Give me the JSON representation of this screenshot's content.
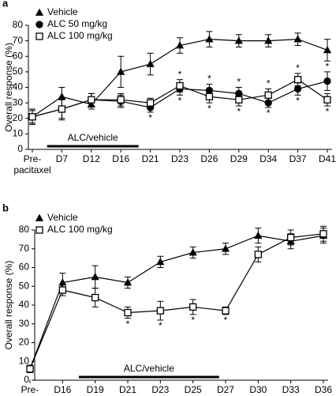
{
  "chart_data": [
    {
      "type": "line",
      "panel": "a",
      "y_label": "Overall response (%)",
      "categories": [
        "Pre-\npacitaxel",
        "D7",
        "D12",
        "D16",
        "D21",
        "D23",
        "D26",
        "D29",
        "D34",
        "D37",
        "D41"
      ],
      "ylim": [
        0,
        80
      ],
      "yticks": [
        0,
        10,
        20,
        30,
        40,
        50,
        60,
        70,
        80
      ],
      "legend": "top-left",
      "annotation": "ALC/vehicle",
      "series": [
        {
          "name": "Vehicle",
          "color": "#000000",
          "marker": "triangle",
          "values": [
            21,
            34,
            29,
            50,
            55,
            67,
            71,
            70,
            70,
            71,
            64
          ],
          "errors": [
            5,
            6,
            3,
            10,
            7,
            5,
            5,
            4,
            4,
            4,
            7
          ],
          "significance": [
            null,
            null,
            null,
            null,
            null,
            null,
            null,
            null,
            null,
            null,
            null
          ]
        },
        {
          "name": "ALC 50 mg/kg",
          "color": "#000000",
          "marker": "circle",
          "values": [
            21,
            26,
            32,
            31,
            27,
            39,
            38,
            36,
            30,
            39,
            44
          ],
          "errors": [
            4,
            7,
            4,
            4,
            3,
            4,
            4,
            4,
            3,
            4,
            6
          ],
          "significance": [
            null,
            null,
            null,
            null,
            "*",
            "*",
            "*",
            "*",
            "*",
            "*",
            "*"
          ]
        },
        {
          "name": "ALC 100 mg/kg",
          "color": "#000000",
          "marker": "square",
          "values": [
            21,
            26,
            32,
            32,
            30,
            41,
            34,
            32,
            35,
            45,
            32
          ],
          "errors": [
            4,
            6,
            4,
            4,
            3,
            4,
            4,
            4,
            4,
            4,
            4
          ],
          "significance": [
            null,
            null,
            null,
            null,
            null,
            "*",
            "*",
            "*",
            "*",
            "*",
            "*"
          ]
        }
      ]
    },
    {
      "type": "line",
      "panel": "b",
      "y_label": "Overall response (%)",
      "categories": [
        "Pre-\npacitaxel",
        "D16",
        "D19",
        "D21",
        "D23",
        "D25",
        "D27",
        "D30",
        "D33",
        "D36"
      ],
      "ylim": [
        0,
        80
      ],
      "yticks": [
        0,
        10,
        20,
        30,
        40,
        50,
        60,
        70,
        80
      ],
      "legend": "top-left",
      "annotation": "ALC/vehicle",
      "series": [
        {
          "name": "Vehicle",
          "color": "#000000",
          "marker": "triangle",
          "values": [
            6,
            52,
            55,
            52,
            63,
            68,
            70,
            77,
            74,
            77
          ],
          "errors": [
            2,
            5,
            6,
            3,
            3,
            3,
            3,
            4,
            4,
            4
          ],
          "significance": [
            null,
            null,
            null,
            null,
            null,
            null,
            null,
            null,
            null,
            null
          ]
        },
        {
          "name": "ALC 100 mg/kg",
          "color": "#000000",
          "marker": "square",
          "values": [
            6,
            48,
            44,
            36,
            37,
            39,
            37,
            67,
            76,
            78
          ],
          "errors": [
            2,
            3,
            5,
            3,
            5,
            4,
            2,
            4,
            4,
            4
          ],
          "significance": [
            null,
            null,
            null,
            "*",
            "*",
            "*",
            "*",
            null,
            null,
            null
          ]
        }
      ]
    }
  ]
}
